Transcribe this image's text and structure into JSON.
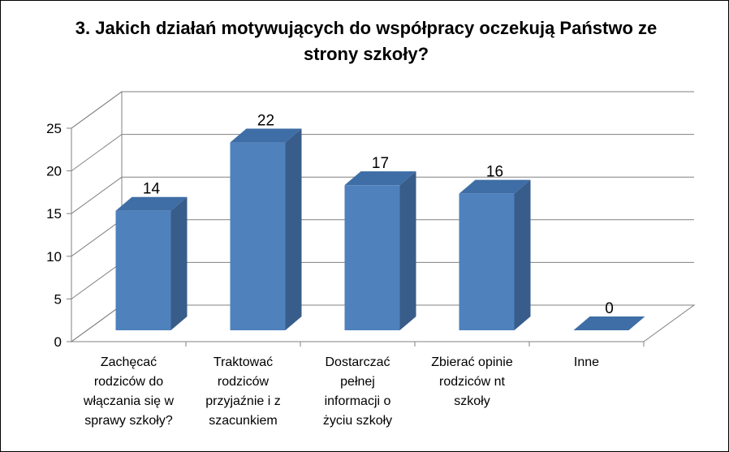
{
  "chart_data": {
    "type": "bar",
    "title": "3. Jakich działań motywujących do współpracy oczekują Państwo ze strony szkoły?",
    "title_lines": [
      "3. Jakich działań motywujących do współpracy oczekują Państwo ze",
      "strony szkoły?"
    ],
    "categories": [
      "Zachęcać rodziców do włączania się w sprawy szkoły?",
      "Traktować rodziców przyjaźnie i z szacunkiem",
      "Dostarczać pełnej informacji o życiu szkoły",
      "Zbierać opinie rodziców nt szkoły",
      "Inne"
    ],
    "category_lines": [
      [
        "Zachęcać",
        "rodziców do",
        "włączania się w",
        "sprawy szkoły?"
      ],
      [
        "Traktować",
        "rodziców",
        "przyjaźnie i z",
        "szacunkiem"
      ],
      [
        "Dostarczać",
        "pełnej",
        "informacji o",
        "życiu szkoły"
      ],
      [
        "Zbierać opinie",
        "rodziców nt",
        "szkoły"
      ],
      [
        "Inne"
      ]
    ],
    "values": [
      14,
      22,
      17,
      16,
      0
    ],
    "data_labels": [
      "14",
      "22",
      "17",
      "16",
      "0"
    ],
    "ylim": [
      0,
      25
    ],
    "yticks": [
      "0",
      "5",
      "10",
      "15",
      "20",
      "25"
    ],
    "grid": true,
    "legend": "none",
    "style": "3d-column",
    "colors": {
      "bar_front": "#4F81BD",
      "bar_side": "#385D8A",
      "bar_top": "#3F6EA6",
      "grid": "#808080"
    }
  }
}
